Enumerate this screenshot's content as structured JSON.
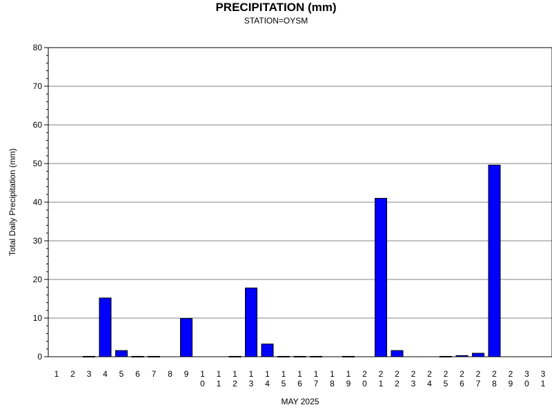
{
  "chart_data": {
    "type": "bar",
    "title": "PRECIPITATION (mm)",
    "subtitle": "STATION=OYSM",
    "xlabel": "MAY 2025",
    "ylabel": "Total Daily Precipitation (mm)",
    "ylim": [
      0,
      80
    ],
    "yticks": [
      0,
      10,
      20,
      30,
      40,
      50,
      60,
      70,
      80
    ],
    "grid": true,
    "bar_color": "#0000ff",
    "categories": [
      "1",
      "2",
      "3",
      "4",
      "5",
      "6",
      "7",
      "8",
      "9",
      "10",
      "11",
      "12",
      "13",
      "14",
      "15",
      "16",
      "17",
      "18",
      "19",
      "20",
      "21",
      "22",
      "23",
      "24",
      "25",
      "26",
      "27",
      "28",
      "29",
      "30",
      "31"
    ],
    "values": [
      null,
      null,
      0.1,
      15.2,
      1.6,
      0.1,
      0.1,
      null,
      9.9,
      null,
      null,
      0.1,
      17.8,
      3.3,
      0.1,
      0.1,
      0.1,
      null,
      0.1,
      null,
      41.0,
      1.6,
      null,
      null,
      0.1,
      0.3,
      0.9,
      49.6,
      null,
      null,
      null
    ]
  }
}
